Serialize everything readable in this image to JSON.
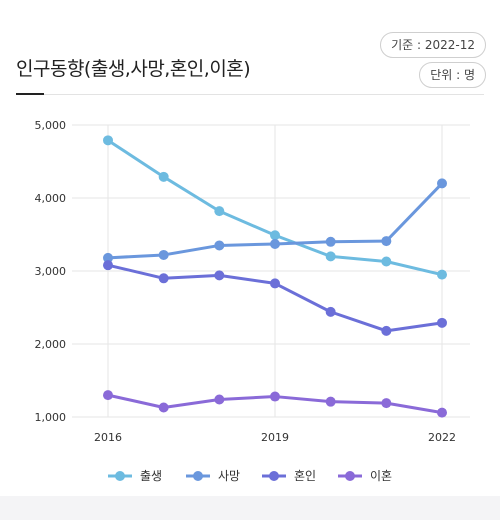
{
  "header": {
    "title": "인구동향(출생,사망,혼인,이혼)",
    "basis": "기준 : 2022-12",
    "unit": "단위 : 명"
  },
  "chart_data": {
    "type": "line",
    "title": "인구동향(출생,사망,혼인,이혼)",
    "xlabel": "",
    "ylabel": "",
    "ylim": [
      1000,
      5000
    ],
    "yticks": [
      "1,000",
      "2,000",
      "3,000",
      "4,000",
      "5,000"
    ],
    "yticks_values": [
      1000,
      2000,
      3000,
      4000,
      5000
    ],
    "x_tick_labels": [
      "2016",
      "2019",
      "2022"
    ],
    "x": [
      2016,
      2017,
      2018,
      2019,
      2020,
      2021,
      2022
    ],
    "grid": true,
    "legend_position": "bottom",
    "series": [
      {
        "name": "출생",
        "color": "#6dbbe0",
        "values": [
          4790,
          4290,
          3820,
          3490,
          3200,
          3130,
          2950
        ]
      },
      {
        "name": "사망",
        "color": "#6a97dd",
        "values": [
          3180,
          3220,
          3350,
          3370,
          3400,
          3410,
          4200
        ]
      },
      {
        "name": "혼인",
        "color": "#6b6fd8",
        "values": [
          3080,
          2900,
          2940,
          2830,
          2440,
          2180,
          2290
        ]
      },
      {
        "name": "이혼",
        "color": "#8a6ad8",
        "values": [
          1300,
          1130,
          1240,
          1280,
          1210,
          1190,
          1060
        ]
      }
    ]
  }
}
